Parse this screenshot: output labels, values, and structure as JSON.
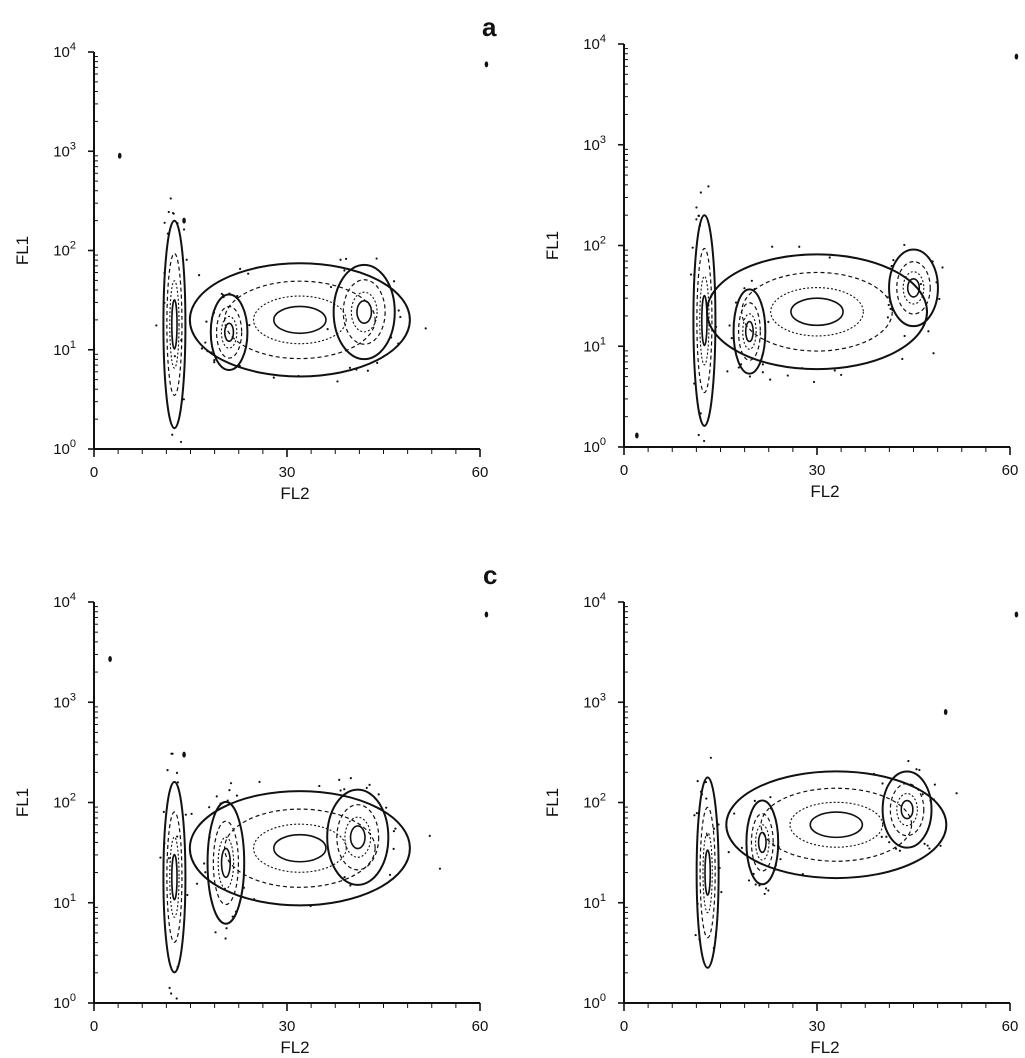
{
  "chart_data": [
    {
      "type": "contour",
      "panel_label": "a",
      "xlabel": "FL2",
      "ylabel": "FL1",
      "xlim": [
        0,
        60
      ],
      "ylim": [
        1,
        10000
      ],
      "yscale": "log",
      "x_ticks": [
        "0",
        "30",
        "60"
      ],
      "y_ticks": [
        {
          "base": "10",
          "exp": "0"
        },
        {
          "base": "10",
          "exp": "1"
        },
        {
          "base": "10",
          "exp": "2"
        },
        {
          "base": "10",
          "exp": "3"
        },
        {
          "base": "10",
          "exp": "4"
        }
      ],
      "populations": [
        {
          "x": 12.5,
          "y": 18,
          "spread_x": 0.9,
          "spread_y_decades": 0.55
        },
        {
          "x": 21,
          "y": 15,
          "spread_x": 1.5,
          "spread_y_decades": 0.2
        },
        {
          "x": 32,
          "y": 20,
          "spread_x": 9.0,
          "spread_y_decades": 0.3
        },
        {
          "x": 42,
          "y": 24,
          "spread_x": 2.5,
          "spread_y_decades": 0.25
        }
      ],
      "outliers": [
        {
          "x": 4,
          "y": 900
        },
        {
          "x": 61,
          "y": 7500
        },
        {
          "x": 14,
          "y": 200
        }
      ]
    },
    {
      "type": "contour",
      "panel_label": "",
      "xlabel": "FL2",
      "ylabel": "FL1",
      "xlim": [
        0,
        60
      ],
      "ylim": [
        1,
        10000
      ],
      "yscale": "log",
      "x_ticks": [
        "0",
        "30",
        "60"
      ],
      "y_ticks": [
        {
          "base": "10",
          "exp": "0"
        },
        {
          "base": "10",
          "exp": "1"
        },
        {
          "base": "10",
          "exp": "2"
        },
        {
          "base": "10",
          "exp": "3"
        },
        {
          "base": "10",
          "exp": "4"
        }
      ],
      "populations": [
        {
          "x": 12.5,
          "y": 18,
          "spread_x": 0.9,
          "spread_y_decades": 0.55
        },
        {
          "x": 19.5,
          "y": 14,
          "spread_x": 1.3,
          "spread_y_decades": 0.22
        },
        {
          "x": 30,
          "y": 22,
          "spread_x": 9.0,
          "spread_y_decades": 0.3
        },
        {
          "x": 45,
          "y": 38,
          "spread_x": 2.0,
          "spread_y_decades": 0.2
        }
      ],
      "outliers": [
        {
          "x": 2,
          "y": 1.3
        },
        {
          "x": 61,
          "y": 7500
        }
      ]
    },
    {
      "type": "contour",
      "panel_label": "c",
      "xlabel": "FL2",
      "ylabel": "FL1",
      "xlim": [
        0,
        60
      ],
      "ylim": [
        1,
        10000
      ],
      "yscale": "log",
      "x_ticks": [
        "0",
        "30",
        "60"
      ],
      "y_ticks": [
        {
          "base": "10",
          "exp": "0"
        },
        {
          "base": "10",
          "exp": "1"
        },
        {
          "base": "10",
          "exp": "2"
        },
        {
          "base": "10",
          "exp": "3"
        },
        {
          "base": "10",
          "exp": "4"
        }
      ],
      "populations": [
        {
          "x": 12.5,
          "y": 18,
          "spread_x": 0.9,
          "spread_y_decades": 0.5
        },
        {
          "x": 20.5,
          "y": 25,
          "spread_x": 1.5,
          "spread_y_decades": 0.32
        },
        {
          "x": 32,
          "y": 35,
          "spread_x": 9.0,
          "spread_y_decades": 0.3
        },
        {
          "x": 41,
          "y": 45,
          "spread_x": 2.5,
          "spread_y_decades": 0.25
        }
      ],
      "outliers": [
        {
          "x": 2.5,
          "y": 2700
        },
        {
          "x": 61,
          "y": 7500
        },
        {
          "x": 14,
          "y": 300
        }
      ]
    },
    {
      "type": "contour",
      "panel_label": "",
      "xlabel": "FL2",
      "ylabel": "FL1",
      "xlim": [
        0,
        60
      ],
      "ylim": [
        1,
        10000
      ],
      "yscale": "log",
      "x_ticks": [
        "0",
        "30",
        "60"
      ],
      "y_ticks": [
        {
          "base": "10",
          "exp": "0"
        },
        {
          "base": "10",
          "exp": "1"
        },
        {
          "base": "10",
          "exp": "2"
        },
        {
          "base": "10",
          "exp": "3"
        },
        {
          "base": "10",
          "exp": "4"
        }
      ],
      "populations": [
        {
          "x": 13,
          "y": 20,
          "spread_x": 0.9,
          "spread_y_decades": 0.5
        },
        {
          "x": 21.5,
          "y": 40,
          "spread_x": 1.3,
          "spread_y_decades": 0.22
        },
        {
          "x": 33,
          "y": 60,
          "spread_x": 9.0,
          "spread_y_decades": 0.28
        },
        {
          "x": 44,
          "y": 85,
          "spread_x": 2.0,
          "spread_y_decades": 0.2
        }
      ],
      "outliers": [
        {
          "x": 61,
          "y": 7500
        },
        {
          "x": 50,
          "y": 800
        }
      ]
    }
  ]
}
